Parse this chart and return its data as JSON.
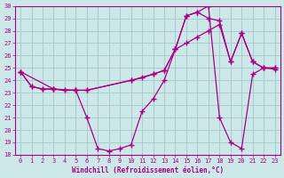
{
  "xlabel": "Windchill (Refroidissement éolien,°C)",
  "bg_color": "#cce8e8",
  "line_color": "#aa0088",
  "grid_color": "#aacccc",
  "xlim": [
    -0.5,
    23.5
  ],
  "ylim": [
    18,
    30
  ],
  "xticks": [
    0,
    1,
    2,
    3,
    4,
    5,
    6,
    7,
    8,
    9,
    10,
    11,
    12,
    13,
    14,
    15,
    16,
    17,
    18,
    19,
    20,
    21,
    22,
    23
  ],
  "yticks": [
    18,
    19,
    20,
    21,
    22,
    23,
    24,
    25,
    26,
    27,
    28,
    29,
    30
  ],
  "lines": [
    {
      "x": [
        0,
        1,
        2,
        3,
        4,
        5,
        6,
        7,
        8,
        9,
        10,
        11,
        12,
        13,
        14,
        15,
        16,
        17,
        18,
        19,
        20,
        21,
        22,
        23
      ],
      "y": [
        24.7,
        23.5,
        23.3,
        23.3,
        23.2,
        23.2,
        21.0,
        18.5,
        18.3,
        18.5,
        18.8,
        21.5,
        22.5,
        24.0,
        26.5,
        29.2,
        29.5,
        30.0,
        21.0,
        19.0,
        18.5,
        24.5,
        25.0,
        25.0
      ]
    },
    {
      "x": [
        0,
        1,
        2,
        3,
        4,
        5,
        6,
        10,
        11,
        12,
        13,
        14,
        15,
        16,
        17,
        18,
        19,
        20,
        21,
        22,
        23
      ],
      "y": [
        24.7,
        23.5,
        23.3,
        23.3,
        23.2,
        23.2,
        23.2,
        24.0,
        24.2,
        24.5,
        24.8,
        26.5,
        29.2,
        29.5,
        29.0,
        28.8,
        25.5,
        27.8,
        25.5,
        25.0,
        24.9
      ]
    },
    {
      "x": [
        0,
        3,
        5,
        6,
        10,
        12,
        13,
        14,
        15,
        16,
        17,
        18,
        19,
        20,
        21,
        22,
        23
      ],
      "y": [
        24.7,
        23.3,
        23.2,
        23.2,
        24.0,
        24.5,
        24.8,
        26.5,
        27.0,
        27.5,
        28.0,
        28.5,
        25.5,
        27.8,
        25.5,
        25.0,
        25.0
      ]
    }
  ]
}
